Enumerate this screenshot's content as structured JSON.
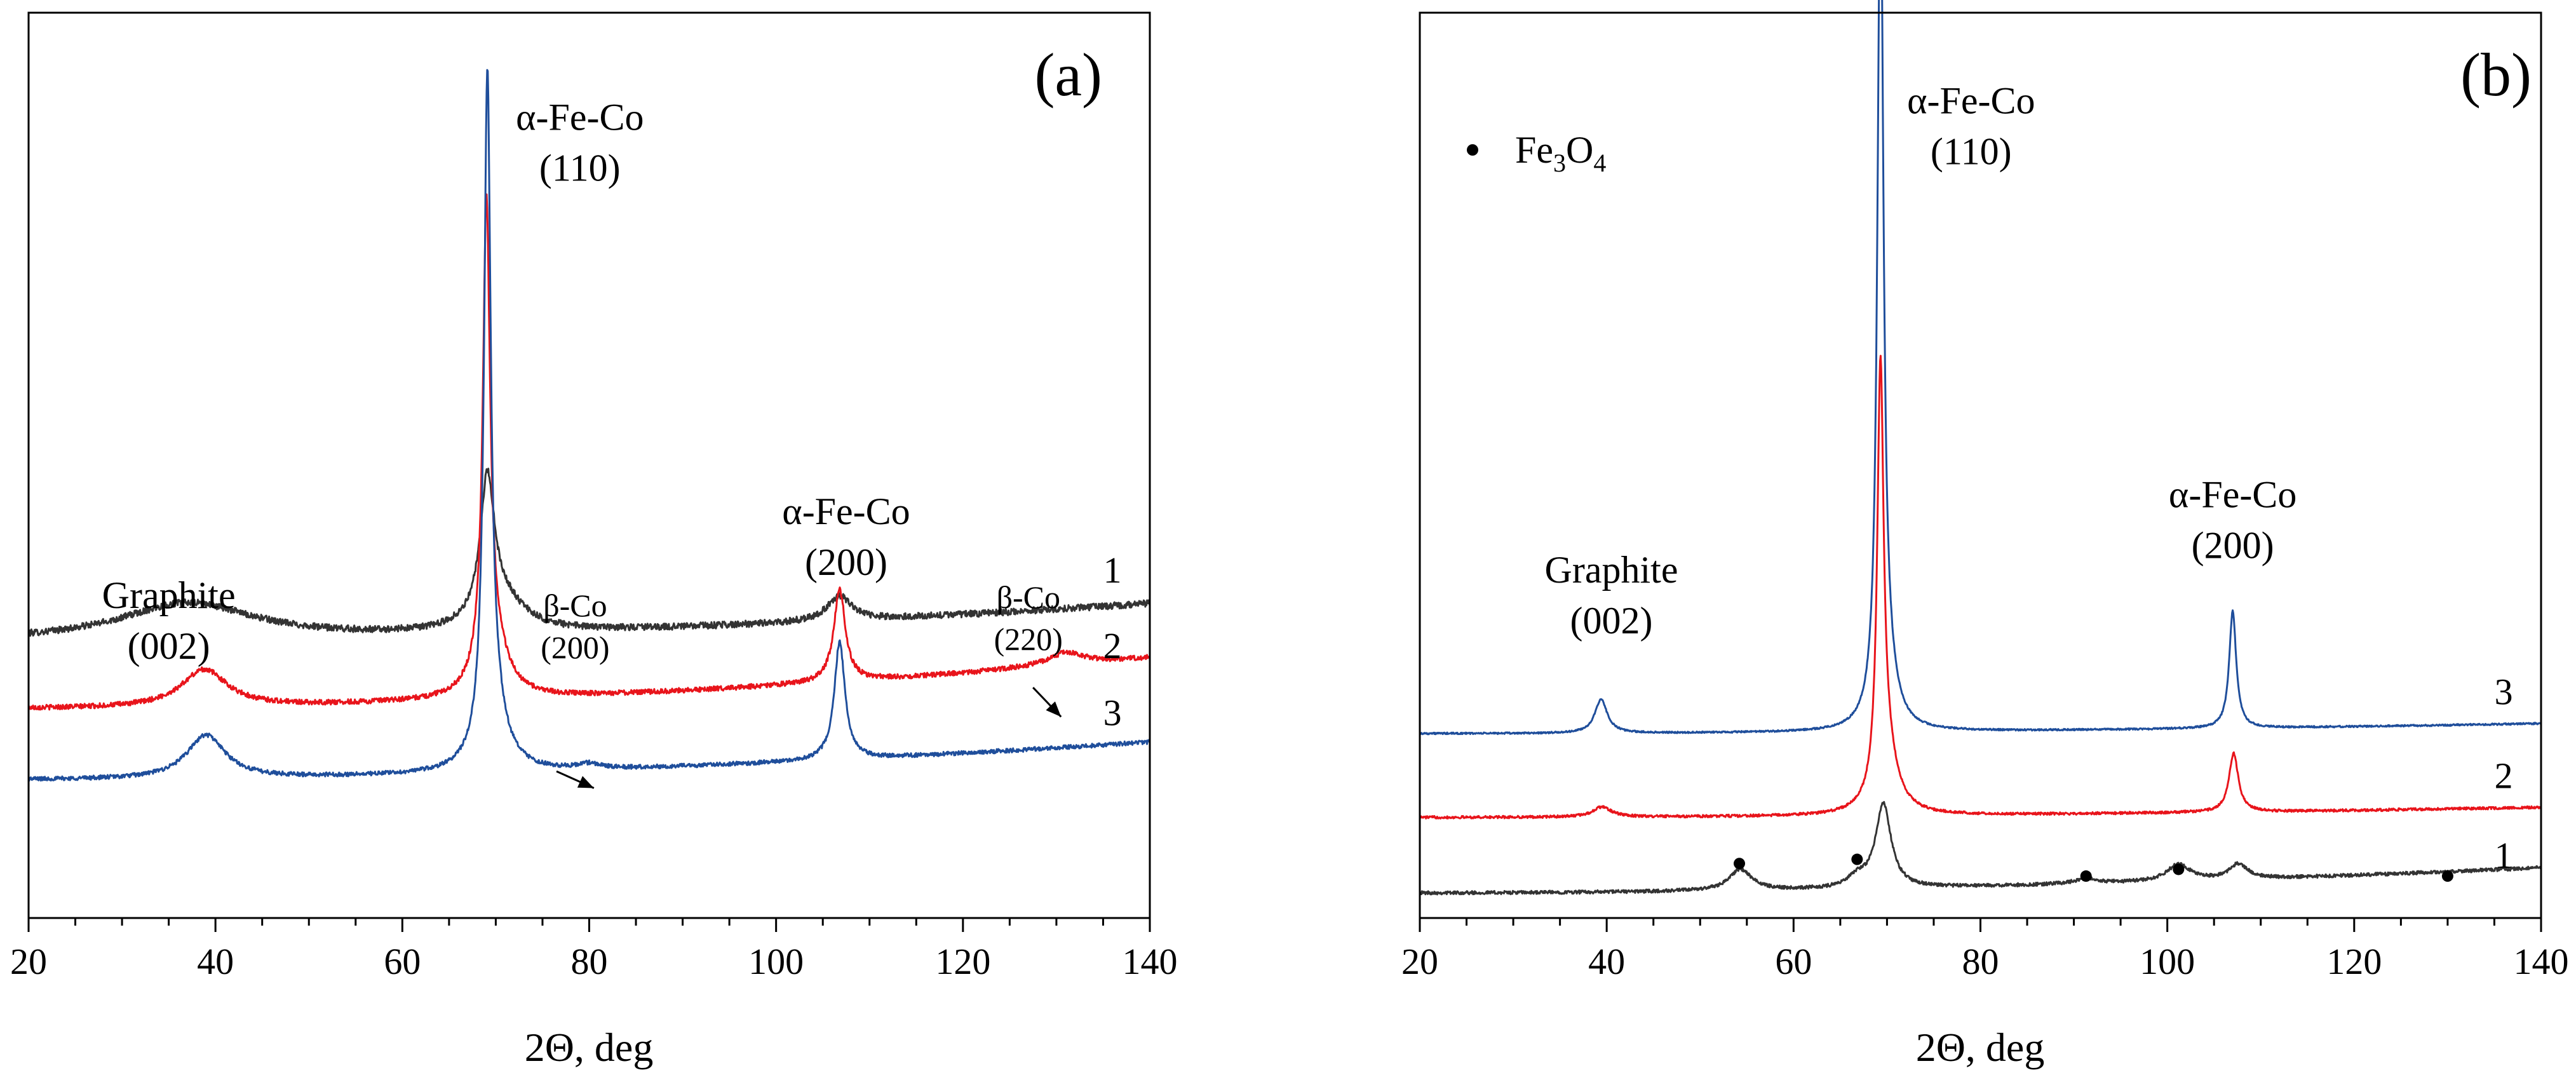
{
  "chart_data": [
    {
      "type": "line",
      "panel_label": "(a)",
      "xlabel": "2Θ, deg",
      "ylabel": "",
      "xlim": [
        20,
        140
      ],
      "xticks": [
        20,
        40,
        60,
        80,
        100,
        120,
        140
      ],
      "y_ticks_shown": false,
      "series": [
        {
          "name": "1",
          "color": "#333333",
          "baseline": 0.33,
          "rise": 0.045,
          "noise": 0.008,
          "peaks": [
            {
              "c": 37,
              "h": 0.045,
              "w": 9
            },
            {
              "c": 69.1,
              "h": 0.16,
              "w": 0.9
            },
            {
              "c": 70.5,
              "h": 0.04,
              "w": 3
            },
            {
              "c": 106.8,
              "h": 0.03,
              "w": 1.6
            }
          ]
        },
        {
          "name": "2",
          "color": "#e8141b",
          "baseline": 0.25,
          "rise": 0.06,
          "noise": 0.006,
          "peaks": [
            {
              "c": 38.8,
              "h": 0.045,
              "w": 3
            },
            {
              "c": 69.0,
              "h": 0.54,
              "w": 0.45
            },
            {
              "c": 69.6,
              "h": 0.07,
              "w": 1.8
            },
            {
              "c": 106.8,
              "h": 0.11,
              "w": 0.75
            },
            {
              "c": 131,
              "h": 0.015,
              "w": 2.5
            }
          ]
        },
        {
          "name": "3",
          "color": "#1f4e9b",
          "baseline": 0.165,
          "rise": 0.045,
          "noise": 0.005,
          "peaks": [
            {
              "c": 39.0,
              "h": 0.052,
              "w": 2.5
            },
            {
              "c": 69.1,
              "h": 0.77,
              "w": 0.42
            },
            {
              "c": 69.6,
              "h": 0.08,
              "w": 1.6
            },
            {
              "c": 106.8,
              "h": 0.14,
              "w": 0.7
            },
            {
              "c": 80,
              "h": 0.006,
              "w": 1.5
            }
          ]
        }
      ],
      "curve_labels": [
        {
          "text": "3",
          "x": 136,
          "y": 0.23
        },
        {
          "text": "2",
          "x": 136,
          "y": 0.31
        },
        {
          "text": "1",
          "x": 136,
          "y": 0.4
        }
      ],
      "annotations": [
        {
          "lines": [
            "α-Fe-Co",
            "(110)"
          ],
          "x": 79,
          "y": 0.94,
          "size": "peak"
        },
        {
          "lines": [
            "α-Fe-Co",
            "(200)"
          ],
          "x": 107.5,
          "y": 0.47,
          "size": "peak"
        },
        {
          "lines": [
            "Graphite",
            "(002)"
          ],
          "x": 35,
          "y": 0.37,
          "size": "peak"
        },
        {
          "lines": [
            "β-Co",
            "(200)"
          ],
          "x": 78.5,
          "y": 0.36,
          "size": "small"
        },
        {
          "lines": [
            "β-Co",
            "(220)"
          ],
          "x": 127,
          "y": 0.37,
          "size": "small"
        }
      ],
      "arrows": [
        {
          "from": [
            76.5,
            0.175
          ],
          "to": [
            80.5,
            0.155
          ]
        },
        {
          "from": [
            127.5,
            0.275
          ],
          "to": [
            130.5,
            0.24
          ]
        }
      ]
    },
    {
      "type": "line",
      "panel_label": "(b)",
      "xlabel": "2Θ, deg",
      "ylabel": "",
      "xlim": [
        20,
        140
      ],
      "xticks": [
        20,
        40,
        60,
        80,
        100,
        120,
        140
      ],
      "y_ticks_shown": false,
      "legend": {
        "marker": "•",
        "text": "Fe3O4",
        "position": "top-left"
      },
      "series": [
        {
          "name": "1",
          "color": "#333333",
          "baseline": 0.03,
          "rise": 0.03,
          "noise": 0.004,
          "peaks": [
            {
              "c": 54.3,
              "h": 0.025,
              "w": 1.5
            },
            {
              "c": 66.8,
              "h": 0.012,
              "w": 1.2
            },
            {
              "c": 69.6,
              "h": 0.1,
              "w": 1
            },
            {
              "c": 91.3,
              "h": 0.006,
              "w": 1.5
            },
            {
              "c": 101.2,
              "h": 0.02,
              "w": 1.5
            },
            {
              "c": 107.6,
              "h": 0.018,
              "w": 1.2
            }
          ]
        },
        {
          "name": "2",
          "color": "#e8141b",
          "baseline": 0.12,
          "rise": 0.012,
          "noise": 0.003,
          "peaks": [
            {
              "c": 39.5,
              "h": 0.012,
              "w": 1.2
            },
            {
              "c": 69.3,
              "h": 0.49,
              "w": 0.4
            },
            {
              "c": 69.9,
              "h": 0.07,
              "w": 1.4
            },
            {
              "c": 107.1,
              "h": 0.07,
              "w": 0.6
            }
          ]
        },
        {
          "name": "3",
          "color": "#1f4e9b",
          "baseline": 0.22,
          "rise": 0.012,
          "noise": 0.002,
          "peaks": [
            {
              "c": 39.4,
              "h": 0.04,
              "w": 0.8
            },
            {
              "c": 69.3,
              "h": 1.0,
              "w": 0.38
            },
            {
              "c": 69.9,
              "h": 0.06,
              "w": 1.2
            },
            {
              "c": 107.0,
              "h": 0.14,
              "w": 0.45
            }
          ]
        }
      ],
      "curve_labels": [
        {
          "text": "3",
          "x": 136,
          "y": 0.255
        },
        {
          "text": "2",
          "x": 136,
          "y": 0.155
        },
        {
          "text": "1",
          "x": 136,
          "y": 0.06
        }
      ],
      "annotations": [
        {
          "lines": [
            "α-Fe-Co",
            "(110)"
          ],
          "x": 79,
          "y": 0.96,
          "size": "peak"
        },
        {
          "lines": [
            "α-Fe-Co",
            "(200)"
          ],
          "x": 107,
          "y": 0.49,
          "size": "peak"
        },
        {
          "lines": [
            "Graphite",
            "(002)"
          ],
          "x": 40.5,
          "y": 0.4,
          "size": "peak"
        }
      ],
      "markers": [
        {
          "x": 54.2,
          "y": 0.065
        },
        {
          "x": 66.8,
          "y": 0.07
        },
        {
          "x": 91.3,
          "y": 0.05
        },
        {
          "x": 101.2,
          "y": 0.058
        },
        {
          "x": 130.0,
          "y": 0.05
        }
      ]
    }
  ]
}
